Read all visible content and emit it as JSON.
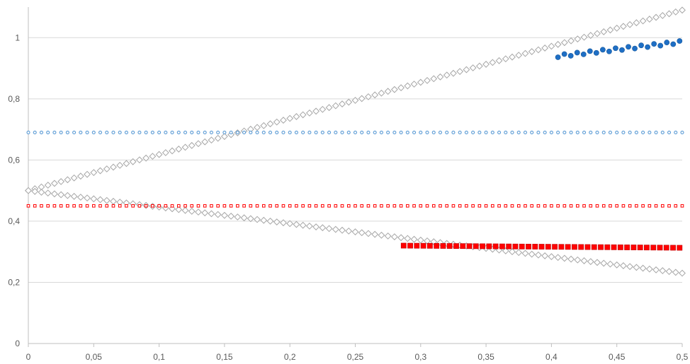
{
  "chart_data": {
    "type": "scatter",
    "title": "",
    "xlabel": "",
    "ylabel": "",
    "xlim": [
      0,
      0.5
    ],
    "ylim": [
      0,
      1.1
    ],
    "grid": "horizontal",
    "legend": "none",
    "x_ticks": [
      "0",
      "0,05",
      "0,1",
      "0,15",
      "0,2",
      "0,25",
      "0,3",
      "0,35",
      "0,4",
      "0,45",
      "0,5"
    ],
    "y_ticks": [
      "0",
      "0,2",
      "0,4",
      "0,6",
      "0,8",
      "1"
    ],
    "series": [
      {
        "marker": "diamond-open",
        "color": "#a6a6a6",
        "x_range": [
          0,
          0.5
        ],
        "y_start": 0.5,
        "y_end": 1.09
      },
      {
        "marker": "diamond-open",
        "color": "#a6a6a6",
        "x_range": [
          0,
          0.5
        ],
        "y_start": 0.5,
        "y_end": 0.23
      },
      {
        "marker": "circle-open",
        "color": "#5b9bd5",
        "x_range": [
          0,
          0.5
        ],
        "y_start": 0.69,
        "y_end": 0.69
      },
      {
        "marker": "square-open",
        "color": "#ff0000",
        "x_range": [
          0,
          0.5
        ],
        "y_start": 0.45,
        "y_end": 0.45
      },
      {
        "marker": "circle",
        "color": "#1f6fc5",
        "x_range": [
          0.405,
          0.498
        ],
        "y_start": 0.94,
        "y_end": 0.985
      },
      {
        "marker": "square",
        "color": "#ff0000",
        "x_range": [
          0.287,
          0.498
        ],
        "y_start": 0.32,
        "y_end": 0.313
      }
    ]
  }
}
